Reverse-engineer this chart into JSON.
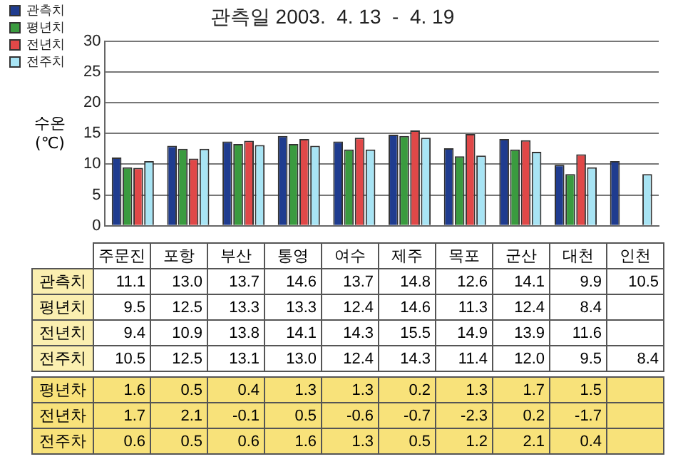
{
  "chart_data": [
    {
      "type": "bar",
      "title": "관측일 2003.  4. 13  -  4. 19",
      "ylabel": "수온 (℃)",
      "categories": [
        "주문진",
        "포항",
        "부산",
        "통영",
        "여수",
        "제주",
        "목포",
        "군산",
        "대천",
        "인천"
      ],
      "series": [
        {
          "name": "관측치",
          "color": "#1f3c8f",
          "values": [
            11.1,
            13.0,
            13.7,
            14.6,
            13.7,
            14.8,
            12.6,
            14.1,
            9.9,
            10.5
          ],
          "value_labels": [
            "11.1",
            "13.0",
            "13.7",
            "14.6",
            "13.7",
            "14.8",
            "12.6",
            "14.1",
            "9.9",
            "10.5"
          ]
        },
        {
          "name": "평년치",
          "color": "#3a9b3f",
          "values": [
            9.5,
            12.5,
            13.3,
            13.3,
            12.4,
            14.6,
            11.3,
            12.4,
            8.4,
            null
          ],
          "value_labels": [
            "9.5",
            "12.5",
            "13.3",
            "13.3",
            "12.4",
            "14.6",
            "11.3",
            "12.4",
            "8.4",
            null
          ]
        },
        {
          "name": "전년치",
          "color": "#e04848",
          "values": [
            9.4,
            10.9,
            13.8,
            14.1,
            14.3,
            15.5,
            14.9,
            13.9,
            11.6,
            null
          ],
          "value_labels": [
            "9.4",
            "10.9",
            "13.8",
            "14.1",
            "14.3",
            "15.5",
            "14.9",
            "13.9",
            "11.6",
            null
          ]
        },
        {
          "name": "전주치",
          "color": "#a8e4f4",
          "values": [
            10.5,
            12.5,
            13.1,
            13.0,
            12.4,
            14.3,
            11.4,
            12.0,
            9.5,
            8.4
          ],
          "value_labels": [
            "10.5",
            "12.5",
            "13.1",
            "13.0",
            "12.4",
            "14.3",
            "11.4",
            "12.0",
            "9.5",
            "8.4"
          ]
        }
      ],
      "ylim": [
        0,
        30
      ],
      "yticks": [
        0,
        5,
        10,
        15,
        20,
        25,
        30
      ],
      "grid": "y",
      "legend": "top left",
      "tick_labels": "y"
    },
    {
      "type": "other",
      "annotations": [
        "평년차 1.6 0.5 0.4 1.3 1.3 0.2 1.3 1.7 1.5",
        "전년차 1.7 2.1 -0.1 0.5 -0.6 -0.7 -2.3 0.2 -1.7",
        "전주차 0.6 0.5 0.6 1.6 1.3 0.5 1.2 2.1 0.4"
      ]
    }
  ]
}
